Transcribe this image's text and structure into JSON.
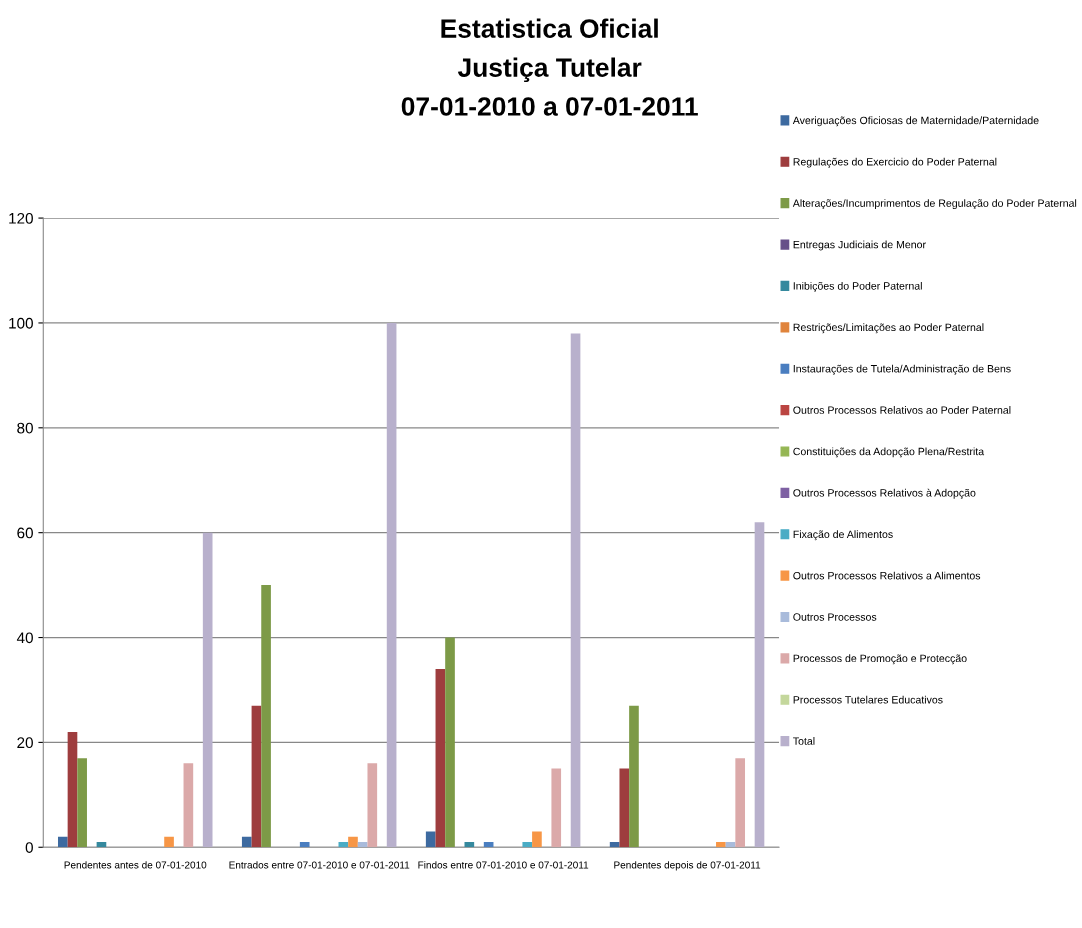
{
  "chart_data": {
    "type": "bar",
    "title": "Estatistica Oficial\nJustiça Tutelar\n07-01-2010 a 07-01-2011",
    "categories": [
      "Pendentes antes de 07-01-2010",
      "Entrados entre 07-01-2010 e 07-01-2011",
      "Findos entre 07-01-2010 e 07-01-2011",
      "Pendentes depois de 07-01-2011"
    ],
    "series": [
      {
        "name": "Averiguações Oficiosas de Maternidade/Paternidade",
        "color": "#3d6aa0",
        "values": [
          2,
          2,
          3,
          1
        ]
      },
      {
        "name": "Regulações do Exercicio do Poder Paternal",
        "color": "#9e3d3e",
        "values": [
          22,
          27,
          34,
          15
        ]
      },
      {
        "name": "Alterações/Incumprimentos de Regulação do Poder Paternal",
        "color": "#7d9a47",
        "values": [
          17,
          50,
          40,
          27
        ]
      },
      {
        "name": "Entregas Judiciais de Menor",
        "color": "#664f89",
        "values": [
          0,
          0,
          0,
          0
        ]
      },
      {
        "name": "Inibições do Poder Paternal",
        "color": "#35899e",
        "values": [
          1,
          0,
          1,
          0
        ]
      },
      {
        "name": "Restrições/Limitações ao Poder Paternal",
        "color": "#e0843c",
        "values": [
          0,
          0,
          0,
          0
        ]
      },
      {
        "name": "Instaurações de Tutela/Administração de Bens",
        "color": "#4a7ec0",
        "values": [
          0,
          1,
          1,
          0
        ]
      },
      {
        "name": "Outros Processos Relativos ao Poder Paternal",
        "color": "#bb4542",
        "values": [
          0,
          0,
          0,
          0
        ]
      },
      {
        "name": "Constituições da Adopção Plena/Restrita",
        "color": "#95b654",
        "values": [
          0,
          0,
          0,
          0
        ]
      },
      {
        "name": "Outros Processos Relativos à Adopção",
        "color": "#7e60a3",
        "values": [
          0,
          0,
          0,
          0
        ]
      },
      {
        "name": "Fixação de Alimentos",
        "color": "#4aacc5",
        "values": [
          0,
          1,
          1,
          0
        ]
      },
      {
        "name": "Outros Processos Relativos a Alimentos",
        "color": "#f79646",
        "values": [
          2,
          2,
          3,
          1
        ]
      },
      {
        "name": "Outros Processos",
        "color": "#a9bbdb",
        "values": [
          0,
          1,
          0,
          1
        ]
      },
      {
        "name": "Processos de Promoção e Protecção",
        "color": "#dba9a9",
        "values": [
          16,
          16,
          15,
          17
        ]
      },
      {
        "name": "Processos Tutelares Educativos",
        "color": "#c4d79c",
        "values": [
          0,
          0,
          0,
          0
        ]
      },
      {
        "name": "Total",
        "color": "#b8b0cc",
        "values": [
          60,
          100,
          98,
          62
        ]
      }
    ],
    "ylim": [
      0,
      120
    ],
    "yticks": [
      0,
      20,
      40,
      60,
      80,
      100,
      120
    ],
    "grid": "y",
    "legend": "right"
  }
}
